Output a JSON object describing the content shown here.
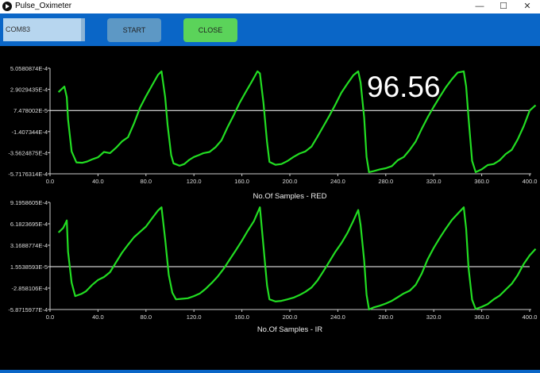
{
  "window": {
    "title": "Pulse_Oximeter",
    "minimize": "—",
    "maximize": "☐",
    "close": "✕"
  },
  "toolbar": {
    "port_value": "COM83",
    "start_label": "START",
    "close_label": "CLOSE"
  },
  "colors": {
    "toolbar": "#0a66c7",
    "plot_background": "#000000",
    "trace": "#22dd22",
    "baseline": "#ffffff",
    "start_button": "#5d98c5",
    "close_button": "#5bd35a"
  },
  "spo2_display": "96.56",
  "chart_data": [
    {
      "type": "line",
      "title": "",
      "xlabel": "No.Of Samples  -  RED",
      "ylabel": "",
      "xlim": [
        0,
        400
      ],
      "xticks": [
        "0.0",
        "40.0",
        "80.0",
        "120.0",
        "160.0",
        "200.0",
        "240.0",
        "280.0",
        "320.0",
        "360.0",
        "400.0"
      ],
      "ylim": [
        -0.00057176314,
        0.00050580874
      ],
      "yticks": [
        "5.0580874E-4",
        "2.9029435E-4",
        "7.478002E-5",
        "-1.407344E-4",
        "-3.5624875E-4",
        "-5.7176314E-4"
      ],
      "baseline_y": 7.478e-05,
      "series": [
        {
          "values": [
            [
              7,
              0.000262
            ],
            [
              12,
              0.000319
            ],
            [
              14,
              0.000211
            ],
            [
              15,
              -1.7e-05
            ],
            [
              18,
              -0.000343
            ],
            [
              22,
              -0.000455
            ],
            [
              27,
              -0.000459
            ],
            [
              31,
              -0.000446
            ],
            [
              35,
              -0.000425
            ],
            [
              40,
              -0.000403
            ],
            [
              45,
              -0.000349
            ],
            [
              50,
              -0.00036
            ],
            [
              55,
              -0.000306
            ],
            [
              60,
              -0.000241
            ],
            [
              65,
              -0.000198
            ],
            [
              70,
              -5.9e-05
            ],
            [
              75,
              0.000102
            ],
            [
              80,
              0.00022
            ],
            [
              85,
              0.000328
            ],
            [
              90,
              0.000438
            ],
            [
              93,
              0.000474
            ],
            [
              96,
              0.00021
            ],
            [
              98,
              -7e-05
            ],
            [
              101,
              -0.00038
            ],
            [
              103,
              -0.000465
            ],
            [
              108,
              -0.000489
            ],
            [
              112,
              -0.000472
            ],
            [
              116,
              -0.00043
            ],
            [
              120,
              -0.0004
            ],
            [
              124,
              -0.000381
            ],
            [
              128,
              -0.00036
            ],
            [
              133,
              -0.000349
            ],
            [
              138,
              -0.0003
            ],
            [
              143,
              -0.00023
            ],
            [
              148,
              -9.7e-05
            ],
            [
              153,
              2.1e-05
            ],
            [
              158,
              0.00015
            ],
            [
              163,
              0.000259
            ],
            [
              168,
              0.000365
            ],
            [
              173,
              0.000474
            ],
            [
              175,
              0.000453
            ],
            [
              178,
              0.00015
            ],
            [
              181,
              -0.00025
            ],
            [
              183,
              -0.00045
            ],
            [
              188,
              -0.000479
            ],
            [
              193,
              -0.000472
            ],
            [
              198,
              -0.000441
            ],
            [
              203,
              -0.0004
            ],
            [
              208,
              -0.000365
            ],
            [
              213,
              -0.000343
            ],
            [
              218,
              -0.000295
            ],
            [
              223,
              -0.000193
            ],
            [
              228,
              -8.6e-05
            ],
            [
              233,
              2.1e-05
            ],
            [
              238,
              0.000136
            ],
            [
              243,
              0.000257
            ],
            [
              248,
              0.000349
            ],
            [
              253,
              0.000435
            ],
            [
              257,
              0.000474
            ],
            [
              259,
              0.00036
            ],
            [
              262,
              0.0
            ],
            [
              264,
              -0.0004
            ],
            [
              266,
              -0.000555
            ],
            [
              270,
              -0.000544
            ],
            [
              275,
              -0.000526
            ],
            [
              280,
              -0.000515
            ],
            [
              285,
              -0.000493
            ],
            [
              290,
              -0.000433
            ],
            [
              295,
              -0.0004
            ],
            [
              300,
              -0.000327
            ],
            [
              305,
              -0.000241
            ],
            [
              310,
              -0.000112
            ],
            [
              315,
              6e-06
            ],
            [
              320,
              0.000113
            ],
            [
              325,
              0.000213
            ],
            [
              330,
              0.00031
            ],
            [
              335,
              0.000392
            ],
            [
              340,
              0.000462
            ],
            [
              345,
              0.000474
            ],
            [
              347,
              0.00032
            ],
            [
              349,
              0.0
            ],
            [
              352,
              -0.00044
            ],
            [
              355,
              -0.000555
            ],
            [
              360,
              -0.000526
            ],
            [
              365,
              -0.000483
            ],
            [
              370,
              -0.000472
            ],
            [
              375,
              -0.000433
            ],
            [
              380,
              -0.00037
            ],
            [
              385,
              -0.000327
            ],
            [
              390,
              -0.000221
            ],
            [
              395,
              -8.6e-05
            ],
            [
              400,
              7.4e-05
            ],
            [
              405,
              0.000128
            ]
          ]
        }
      ]
    },
    {
      "type": "line",
      "title": "",
      "xlabel": "No.Of Samples  -  IR",
      "ylabel": "",
      "xlim": [
        0,
        400
      ],
      "xticks": [
        "0.0",
        "40.0",
        "80.0",
        "120.0",
        "160.0",
        "200.0",
        "240.0",
        "280.0",
        "320.0",
        "360.0",
        "400.0"
      ],
      "ylim": [
        -0.00058715977,
        0.00091958605
      ],
      "yticks": [
        "9.1958605E-4",
        "6.1823695E-4",
        "3.1688774E-4",
        "1.5538593E-5",
        "-2.858106E-4",
        "-5.8715977E-4"
      ],
      "baseline_y": 1.5538593e-05,
      "series": [
        {
          "values": [
            [
              7,
              0.000496
            ],
            [
              11,
              0.00056
            ],
            [
              14,
              0.000665
            ],
            [
              15,
              0.000224
            ],
            [
              18,
              -0.00021
            ],
            [
              21,
              -0.000399
            ],
            [
              26,
              -0.000368
            ],
            [
              30,
              -0.00033
            ],
            [
              35,
              -0.000243
            ],
            [
              40,
              -0.000172
            ],
            [
              45,
              -0.000131
            ],
            [
              50,
              -6.3e-05
            ],
            [
              55,
              7.6e-05
            ],
            [
              60,
              0.000211
            ],
            [
              65,
              0.000324
            ],
            [
              70,
              0.000429
            ],
            [
              75,
              0.000504
            ],
            [
              80,
              0.000579
            ],
            [
              85,
              0.000692
            ],
            [
              90,
              0.000805
            ],
            [
              93,
              0.00085
            ],
            [
              96,
              0.0004
            ],
            [
              99,
              -0.0001
            ],
            [
              102,
              -0.00035
            ],
            [
              105,
              -0.000444
            ],
            [
              110,
              -0.000436
            ],
            [
              115,
              -0.000429
            ],
            [
              120,
              -0.000399
            ],
            [
              125,
              -0.000361
            ],
            [
              130,
              -0.000293
            ],
            [
              135,
              -0.00021
            ],
            [
              140,
              -0.000119
            ],
            [
              145,
              -1e-05
            ],
            [
              150,
              0.00012
            ],
            [
              155,
              0.000249
            ],
            [
              160,
              0.00038
            ],
            [
              165,
              0.000522
            ],
            [
              170,
              0.000655
            ],
            [
              175,
              0.00085
            ],
            [
              178,
              0.0003
            ],
            [
              181,
              -0.00025
            ],
            [
              183,
              -0.000444
            ],
            [
              188,
              -0.000474
            ],
            [
              193,
              -0.000466
            ],
            [
              198,
              -0.000444
            ],
            [
              203,
              -0.000421
            ],
            [
              208,
              -0.000384
            ],
            [
              213,
              -0.000338
            ],
            [
              218,
              -0.000278
            ],
            [
              223,
              -0.00018
            ],
            [
              228,
              -4.8e-05
            ],
            [
              233,
              8.7e-05
            ],
            [
              238,
              0.000227
            ],
            [
              243,
              0.000346
            ],
            [
              248,
              0.000489
            ],
            [
              253,
              0.000662
            ],
            [
              257,
              0.000812
            ],
            [
              259,
              0.0006
            ],
            [
              262,
              0.0001
            ],
            [
              264,
              -0.00038
            ],
            [
              266,
              -0.000587
            ],
            [
              270,
              -0.000557
            ],
            [
              275,
              -0.000534
            ],
            [
              280,
              -0.000504
            ],
            [
              285,
              -0.000466
            ],
            [
              290,
              -0.000414
            ],
            [
              295,
              -0.000361
            ],
            [
              300,
              -0.000323
            ],
            [
              305,
              -0.00024
            ],
            [
              310,
              -8.2e-05
            ],
            [
              315,
              0.000121
            ],
            [
              320,
              0.00028
            ],
            [
              325,
              0.000421
            ],
            [
              330,
              0.000549
            ],
            [
              335,
              0.00067
            ],
            [
              340,
              0.00076
            ],
            [
              345,
              0.00085
            ],
            [
              347,
              0.00055
            ],
            [
              349,
              0.0
            ],
            [
              352,
              -0.00045
            ],
            [
              355,
              -0.00058
            ],
            [
              360,
              -0.000549
            ],
            [
              365,
              -0.000511
            ],
            [
              370,
              -0.000444
            ],
            [
              375,
              -0.000391
            ],
            [
              380,
              -0.000308
            ],
            [
              385,
              -0.000225
            ],
            [
              390,
              -0.000104
            ],
            [
              395,
              5.3e-05
            ],
            [
              400,
              0.000174
            ],
            [
              405,
              0.000265
            ]
          ]
        }
      ]
    }
  ]
}
